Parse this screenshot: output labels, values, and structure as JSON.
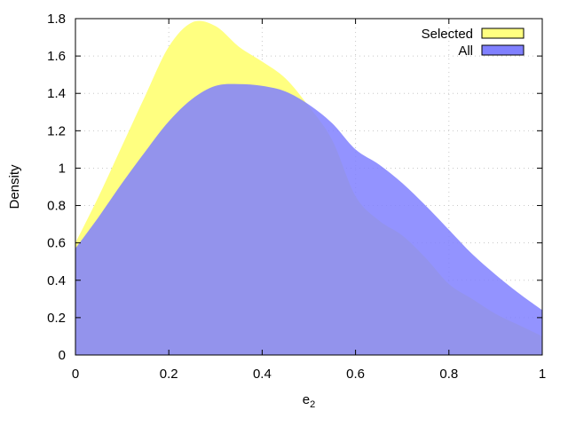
{
  "chart_data": {
    "type": "area",
    "title": "",
    "xlabel": "e",
    "xlabel_subscript": "2",
    "ylabel": "Density",
    "xlim": [
      0,
      1
    ],
    "ylim": [
      0,
      1.8
    ],
    "x_ticks": [
      "0",
      "0.2",
      "0.4",
      "0.6",
      "0.8",
      "1"
    ],
    "y_ticks": [
      "0",
      "0.2",
      "0.4",
      "0.6",
      "0.8",
      "1",
      "1.2",
      "1.4",
      "1.6",
      "1.8"
    ],
    "grid": true,
    "legend_position": "top-right",
    "series": [
      {
        "name": "Selected",
        "color": "#ffff80",
        "x": [
          0,
          0.05,
          0.1,
          0.15,
          0.2,
          0.25,
          0.3,
          0.35,
          0.4,
          0.45,
          0.5,
          0.55,
          0.6,
          0.65,
          0.7,
          0.75,
          0.8,
          0.85,
          0.9,
          0.95,
          1
        ],
        "values": [
          0.6,
          0.85,
          1.12,
          1.39,
          1.65,
          1.78,
          1.76,
          1.65,
          1.57,
          1.48,
          1.33,
          1.15,
          0.85,
          0.72,
          0.64,
          0.52,
          0.38,
          0.3,
          0.22,
          0.16,
          0.1
        ]
      },
      {
        "name": "All",
        "color": "#8080ff",
        "x": [
          0,
          0.05,
          0.1,
          0.15,
          0.2,
          0.25,
          0.3,
          0.35,
          0.4,
          0.45,
          0.5,
          0.55,
          0.6,
          0.65,
          0.7,
          0.75,
          0.8,
          0.85,
          0.9,
          0.95,
          1
        ],
        "values": [
          0.57,
          0.74,
          0.92,
          1.09,
          1.25,
          1.37,
          1.44,
          1.45,
          1.44,
          1.41,
          1.34,
          1.24,
          1.1,
          1.02,
          0.92,
          0.8,
          0.67,
          0.54,
          0.43,
          0.33,
          0.24
        ]
      }
    ]
  }
}
